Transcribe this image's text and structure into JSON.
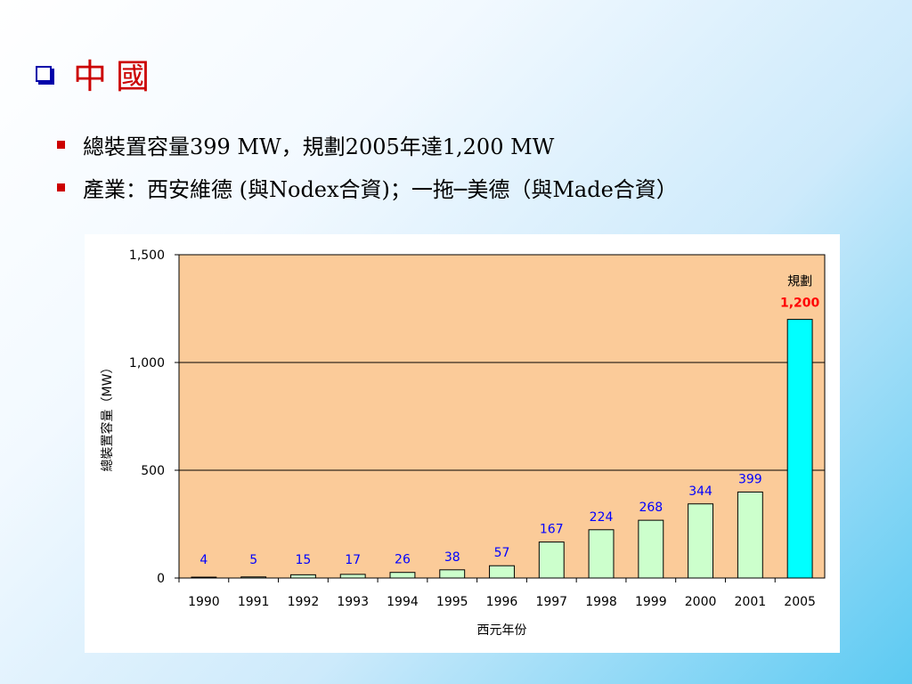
{
  "slide": {
    "title": "中國",
    "bullets": [
      "總裝置容量399 MW，規劃2005年達1,200 MW",
      "產業：西安維德 (與Nodex合資)；一拖─美德（與Made合資）"
    ]
  },
  "colors": {
    "title": "#cc0000",
    "bullet": "#cc0000",
    "checkbox": "#0000aa",
    "plot_bg": "#fbcb99",
    "bar_fill": "#ccffcc",
    "highlight_bar_fill": "#00ffff",
    "data_label": "#0000ff",
    "highlight_label": "#ff0000"
  },
  "chart_data": {
    "type": "bar",
    "categories": [
      "1990",
      "1991",
      "1992",
      "1993",
      "1994",
      "1995",
      "1996",
      "1997",
      "1998",
      "1999",
      "2000",
      "2001",
      "2005"
    ],
    "values": [
      4,
      5,
      15,
      17,
      26,
      38,
      57,
      167,
      224,
      268,
      344,
      399,
      1200
    ],
    "data_labels": [
      "4",
      "5",
      "15",
      "17",
      "26",
      "38",
      "57",
      "167",
      "224",
      "268",
      "344",
      "399",
      "1,200"
    ],
    "highlight_index": 12,
    "highlight_note": "規劃",
    "xlabel": "西元年份",
    "ylabel": "總裝置容量（MW）",
    "ylim": [
      0,
      1500
    ],
    "yticks": [
      0,
      500,
      1000,
      1500
    ],
    "ytick_labels": [
      "0",
      "500",
      "1,000",
      "1,500"
    ],
    "grid": true,
    "legend": false
  }
}
